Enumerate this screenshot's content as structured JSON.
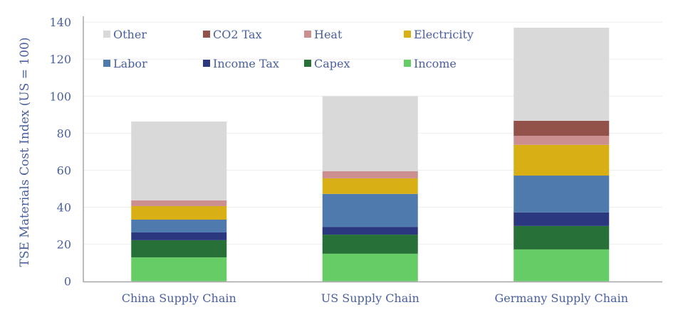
{
  "chart_data": {
    "type": "bar",
    "stacked": true,
    "title": "",
    "xlabel": "",
    "ylabel": "TSE Materials Cost Index (US = 100)",
    "ylim": [
      0,
      140
    ],
    "yticks": [
      0,
      20,
      40,
      60,
      80,
      100,
      120,
      140
    ],
    "grid": true,
    "legend_position": "top-left",
    "categories": [
      "China Supply Chain",
      "US Supply Chain",
      "Germany Supply Chain"
    ],
    "series": [
      {
        "name": "Income",
        "color": "#66cc66",
        "values": [
          12.9,
          14.9,
          17.2
        ]
      },
      {
        "name": "Capex",
        "color": "#277037",
        "values": [
          9.3,
          10.3,
          12.7
        ]
      },
      {
        "name": "Income Tax",
        "color": "#2b3880",
        "values": [
          4.2,
          4.2,
          7.3
        ]
      },
      {
        "name": "Labor",
        "color": "#4f7aae",
        "values": [
          6.9,
          17.8,
          19.9
        ]
      },
      {
        "name": "Electricity",
        "color": "#d8b016",
        "values": [
          7.3,
          8.4,
          16.6
        ]
      },
      {
        "name": "Heat",
        "color": "#cc8f8f",
        "values": [
          3.1,
          3.9,
          4.9
        ]
      },
      {
        "name": "CO2 Tax",
        "color": "#92524a",
        "values": [
          0,
          0,
          8.1
        ]
      },
      {
        "name": "Other",
        "color": "#d9d9d9",
        "values": [
          42.6,
          40.5,
          50.3
        ]
      }
    ],
    "legend_order": [
      "Other",
      "CO2 Tax",
      "Heat",
      "Electricity",
      "Labor",
      "Income Tax",
      "Capex",
      "Income"
    ]
  }
}
